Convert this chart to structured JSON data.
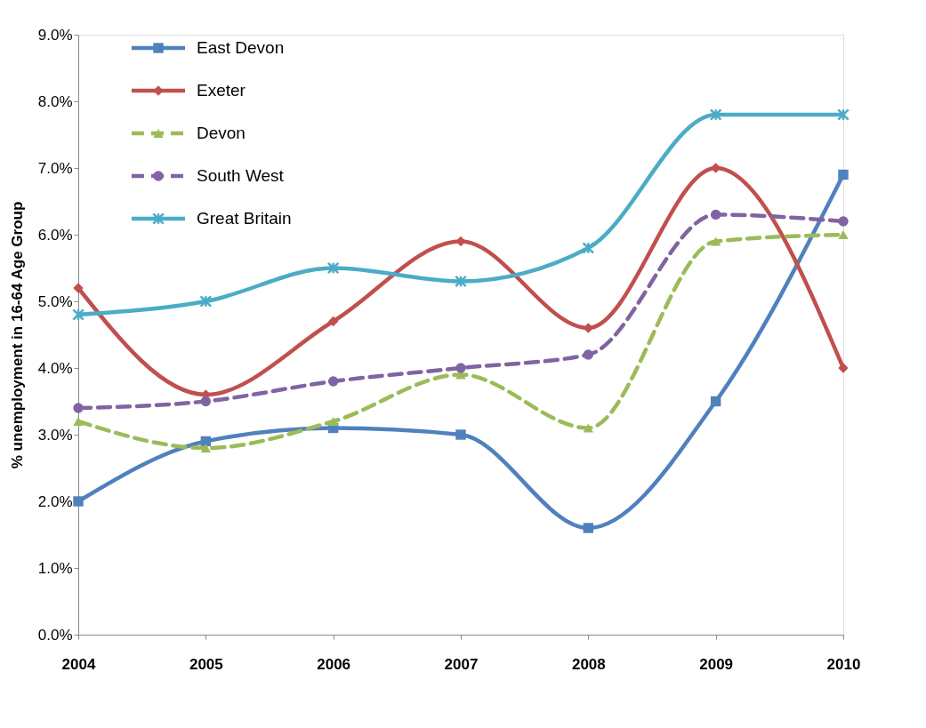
{
  "chart_data": {
    "type": "line",
    "ylabel": "% unemployment in 16-64 Age Group",
    "categories": [
      "2004",
      "2005",
      "2006",
      "2007",
      "2008",
      "2009",
      "2010"
    ],
    "ylim": [
      0,
      9
    ],
    "yticks": [
      {
        "value": 0,
        "label": "0.0%"
      },
      {
        "value": 1,
        "label": "1.0%"
      },
      {
        "value": 2,
        "label": "2.0%"
      },
      {
        "value": 3,
        "label": "3.0%"
      },
      {
        "value": 4,
        "label": "4.0%"
      },
      {
        "value": 5,
        "label": "5.0%"
      },
      {
        "value": 6,
        "label": "6.0%"
      },
      {
        "value": 7,
        "label": "7.0%"
      },
      {
        "value": 8,
        "label": "8.0%"
      },
      {
        "value": 9,
        "label": "9.0%"
      }
    ],
    "grid": false,
    "legend": "top left",
    "series": [
      {
        "name": "East Devon",
        "color": "#4f81bd",
        "marker": "square",
        "line_style": "solid",
        "values": [
          2.0,
          2.9,
          3.1,
          3.0,
          1.6,
          3.5,
          6.9
        ]
      },
      {
        "name": "Exeter",
        "color": "#c0504d",
        "marker": "diamond",
        "line_style": "solid",
        "values": [
          5.2,
          3.6,
          4.7,
          5.9,
          4.6,
          7.0,
          4.0
        ]
      },
      {
        "name": "Devon",
        "color": "#9bbb59",
        "marker": "triangle",
        "line_style": "dashed",
        "values": [
          3.2,
          2.8,
          3.2,
          3.9,
          3.1,
          5.9,
          6.0
        ]
      },
      {
        "name": "South West",
        "color": "#8064a2",
        "marker": "circle",
        "line_style": "dashed",
        "values": [
          3.4,
          3.5,
          3.8,
          4.0,
          4.2,
          6.3,
          6.2
        ]
      },
      {
        "name": "Great Britain",
        "color": "#4bacc6",
        "marker": "cross",
        "line_style": "solid",
        "values": [
          4.8,
          5.0,
          5.5,
          5.3,
          5.8,
          7.8,
          7.8
        ]
      }
    ]
  }
}
